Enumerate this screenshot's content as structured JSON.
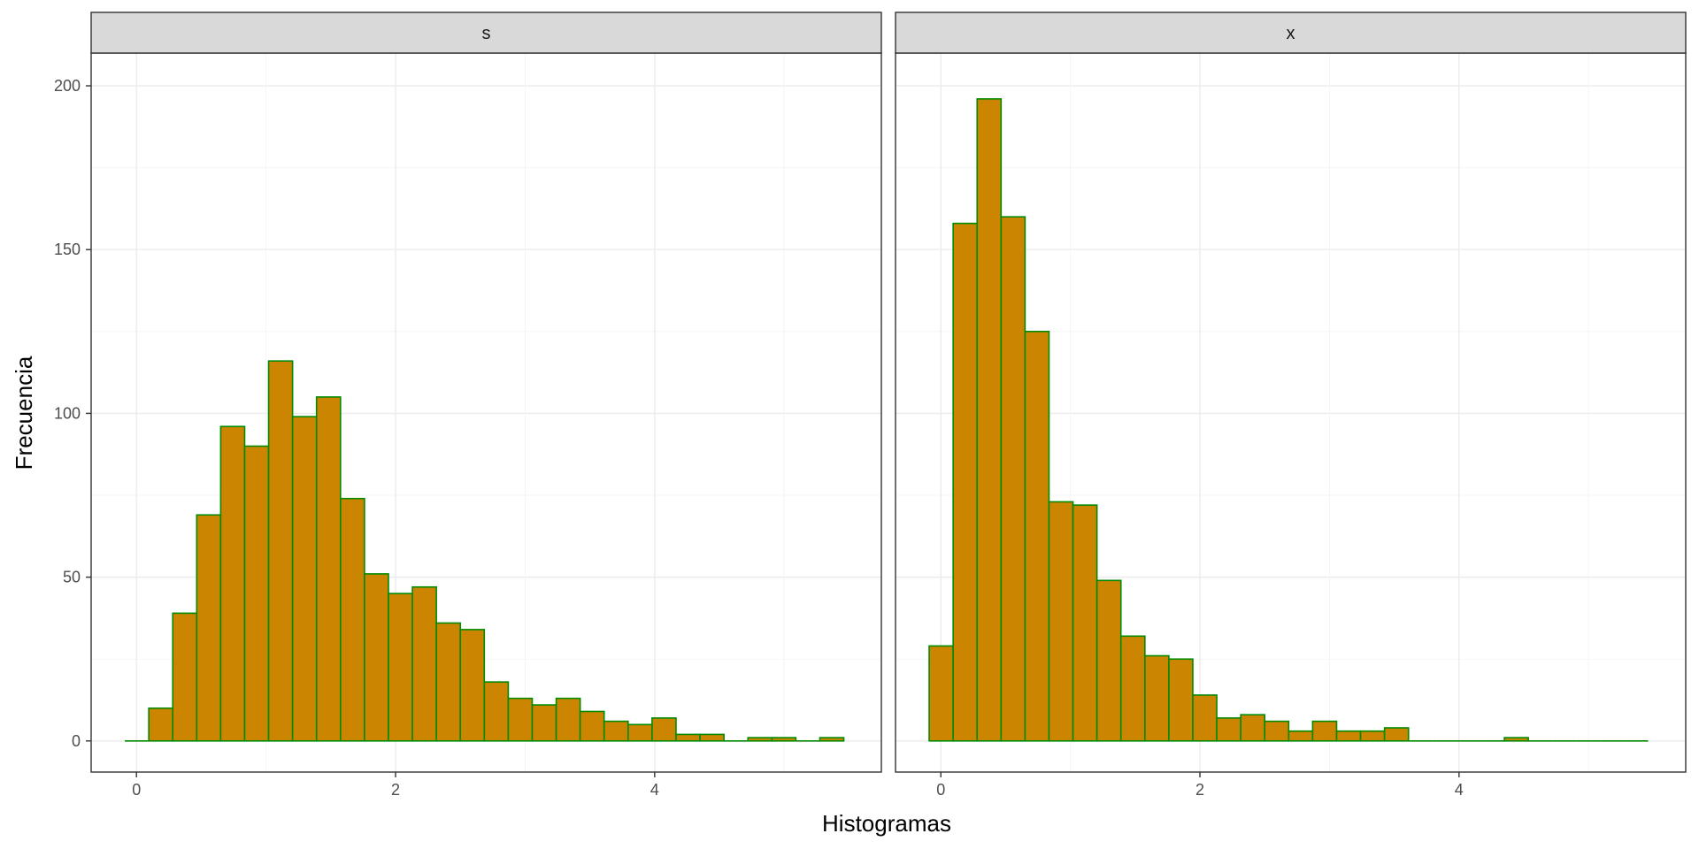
{
  "chart_data": {
    "type": "bar",
    "subtype": "histogram-facets",
    "title": "",
    "xlabel": "Histogramas",
    "ylabel": "Frecuencia",
    "xlim": [
      -0.35,
      5.75
    ],
    "ylim": [
      -9.5,
      210
    ],
    "x_ticks": [
      0,
      2,
      4
    ],
    "y_ticks": [
      0,
      50,
      100,
      150,
      200
    ],
    "grid": true,
    "fill_color": "#CC8500",
    "edge_color": "#008B00",
    "bin_width": 0.185,
    "facets": [
      {
        "label": "s",
        "start": -0.09,
        "counts": [
          0,
          10,
          39,
          69,
          96,
          90,
          116,
          99,
          105,
          74,
          51,
          45,
          47,
          36,
          34,
          18,
          13,
          11,
          13,
          9,
          6,
          5,
          7,
          2,
          2,
          0,
          1,
          1,
          0,
          1
        ]
      },
      {
        "label": "x",
        "start": -0.09,
        "counts": [
          29,
          158,
          196,
          160,
          125,
          73,
          72,
          49,
          32,
          26,
          25,
          14,
          7,
          8,
          6,
          3,
          6,
          3,
          3,
          4,
          0,
          0,
          0,
          0,
          1,
          0,
          0,
          0,
          0,
          0
        ]
      }
    ]
  }
}
